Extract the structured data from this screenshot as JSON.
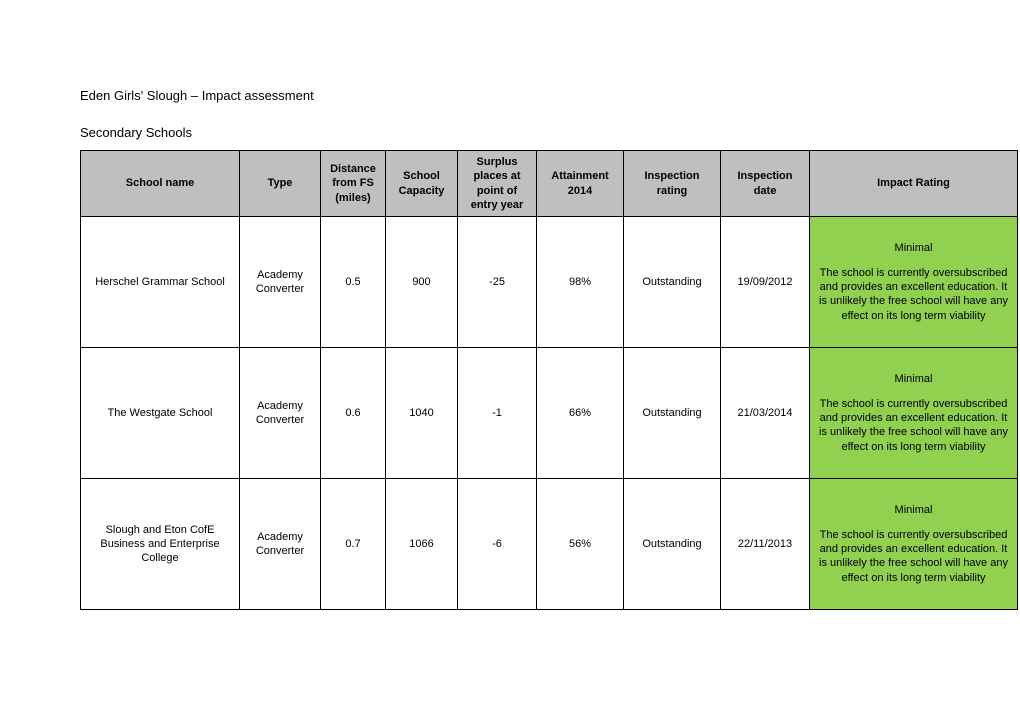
{
  "title": "Eden Girls' Slough – Impact assessment",
  "subtitle": "Secondary Schools",
  "columns": {
    "name": "School name",
    "type": "Type",
    "distance": "Distance from FS (miles)",
    "capacity": "School Capacity",
    "surplus": "Surplus places at point of entry year",
    "attainment": "Attainment 2014",
    "inspection_rating": "Inspection rating",
    "inspection_date": "Inspection date",
    "impact": "Impact Rating"
  },
  "rows": [
    {
      "name": "Herschel Grammar School",
      "type": "Academy Converter",
      "distance": "0.5",
      "capacity": "900",
      "surplus": "-25",
      "attainment": "98%",
      "inspection_rating": "Outstanding",
      "inspection_date": "19/09/2012",
      "impact_level": "Minimal",
      "impact_desc": "The school is currently oversubscribed and provides an excellent education. It is unlikely the free school will have any effect on its long term viability"
    },
    {
      "name": "The Westgate School",
      "type": "Academy Converter",
      "distance": "0.6",
      "capacity": "1040",
      "surplus": "-1",
      "attainment": "66%",
      "inspection_rating": "Outstanding",
      "inspection_date": "21/03/2014",
      "impact_level": "Minimal",
      "impact_desc": "The school is currently oversubscribed and provides an excellent education. It is unlikely the free school will have any effect on its long term viability"
    },
    {
      "name": "Slough and Eton CofE Business and Enterprise College",
      "type": "Academy Converter",
      "distance": "0.7",
      "capacity": "1066",
      "surplus": "-6",
      "attainment": "56%",
      "inspection_rating": "Outstanding",
      "inspection_date": "22/11/2013",
      "impact_level": "Minimal",
      "impact_desc": "The school is currently oversubscribed and provides an excellent education. It is unlikely the free school will have any effect on its long term viability"
    }
  ],
  "colors": {
    "header_bg": "#bfbfbf",
    "impact_bg": "#92d050",
    "border": "#000000",
    "page_bg": "#ffffff",
    "text": "#000000"
  }
}
